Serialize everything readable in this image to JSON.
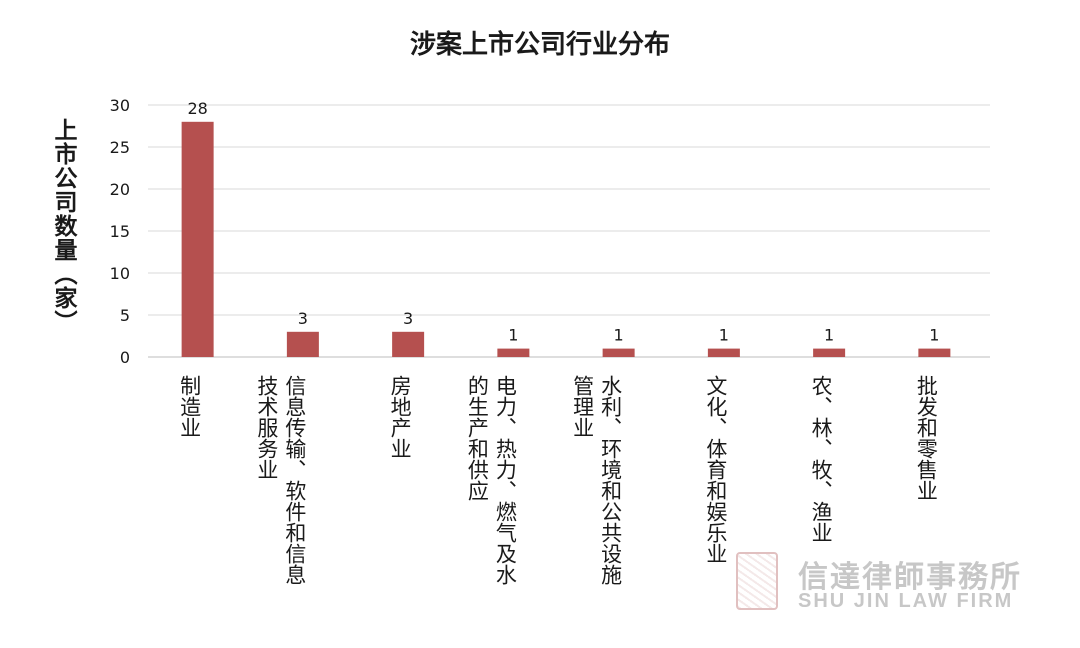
{
  "chart_data": {
    "type": "bar",
    "title": "涉案上市公司行业分布",
    "ylabel": "上市公司数量（家）",
    "xlabel": "",
    "ylim": [
      0,
      30
    ],
    "yticks": [
      0,
      5,
      10,
      15,
      20,
      25,
      30
    ],
    "grid": true,
    "legend": "none",
    "bar_color": "#b5504f",
    "categories": [
      "制造业",
      "信息传输、软件和信息技术服务业",
      "房地产业",
      "电力、热力、燃气及水的生产和供应",
      "水利、环境和公共设施管理业",
      "文化、体育和娱乐业",
      "农、林、牧、渔业",
      "批发和零售业"
    ],
    "values": [
      28,
      3,
      3,
      1,
      1,
      1,
      1,
      1
    ]
  },
  "category_label_lines": [
    [
      "制造业"
    ],
    [
      "信息传输、软件和信息",
      "技术服务业"
    ],
    [
      "房地产业"
    ],
    [
      "电力、热力、燃气及水",
      "的生产和供应"
    ],
    [
      "水利、环境和公共设施",
      "管理业"
    ],
    [
      "文化、体育和娱乐业"
    ],
    [
      "农、林、牧、渔业"
    ],
    [
      "批发和零售业"
    ]
  ],
  "watermark": {
    "name_cn": "信達律師事務所",
    "name_en": "SHU JIN LAW FIRM"
  }
}
